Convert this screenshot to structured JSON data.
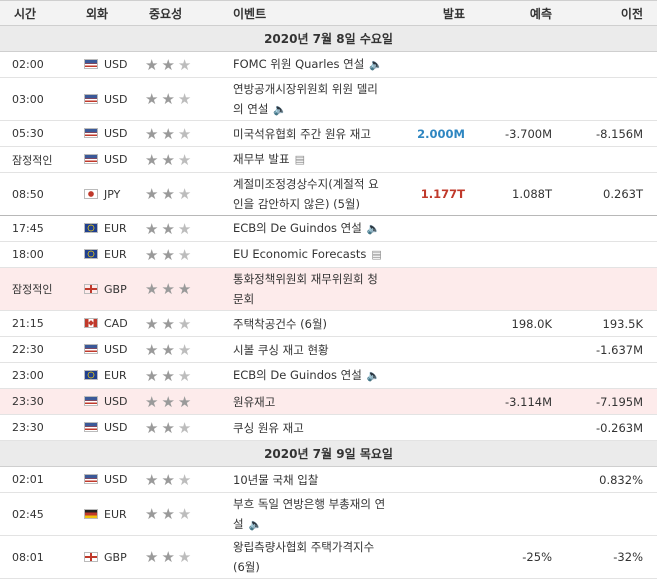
{
  "headers": {
    "time": "시간",
    "currency": "외화",
    "importance": "중요성",
    "event": "이벤트",
    "actual": "발표",
    "forecast": "예측",
    "previous": "이전"
  },
  "sections": [
    {
      "date": "2020년 7월 8일 수요일",
      "rows": [
        {
          "time": "02:00",
          "flag": "us",
          "currency": "USD",
          "stars": 2,
          "event": "FOMC 위원 Quarles 연설",
          "icon": "speaker-icon",
          "actual": "",
          "actual_dir": "",
          "forecast": "",
          "previous": "",
          "lines": 1,
          "hl": false
        },
        {
          "time": "03:00",
          "flag": "us",
          "currency": "USD",
          "stars": 2,
          "event": "연방공개시장위원회 위원 델리의 연설",
          "icon": "speaker-icon",
          "actual": "",
          "actual_dir": "",
          "forecast": "",
          "previous": "",
          "lines": 2,
          "hl": false
        },
        {
          "time": "05:30",
          "flag": "us",
          "currency": "USD",
          "stars": 2,
          "event": "미국석유협회 주간 원유 재고",
          "icon": "",
          "actual": "2.000M",
          "actual_dir": "up",
          "forecast": "-3.700M",
          "previous": "-8.156M",
          "lines": 1,
          "hl": false
        },
        {
          "time": "잠정적인",
          "flag": "us",
          "currency": "USD",
          "stars": 2,
          "event": "재무부 발표",
          "icon": "document-icon",
          "actual": "",
          "actual_dir": "",
          "forecast": "",
          "previous": "",
          "lines": 1,
          "hl": false
        },
        {
          "time": "08:50",
          "flag": "jp",
          "currency": "JPY",
          "stars": 2,
          "event": "계절미조정경상수지(계절적 요인을 감안하지 않은) (5월)",
          "icon": "",
          "actual": "1.177T",
          "actual_dir": "dn",
          "forecast": "1.088T",
          "previous": "0.263T",
          "lines": 2,
          "hl": false,
          "sep": true
        },
        {
          "time": "17:45",
          "flag": "eu",
          "currency": "EUR",
          "stars": 2,
          "event": "ECB의 De Guindos 연설",
          "icon": "speaker-icon",
          "actual": "",
          "actual_dir": "",
          "forecast": "",
          "previous": "",
          "lines": 1,
          "hl": false
        },
        {
          "time": "18:00",
          "flag": "eu",
          "currency": "EUR",
          "stars": 2,
          "event": "EU Economic Forecasts",
          "icon": "document-icon",
          "actual": "",
          "actual_dir": "",
          "forecast": "",
          "previous": "",
          "lines": 1,
          "hl": false
        },
        {
          "time": "잠정적인",
          "flag": "gb",
          "currency": "GBP",
          "stars": 3,
          "event": "통화정책위원회 재무위원회 청문회",
          "icon": "",
          "actual": "",
          "actual_dir": "",
          "forecast": "",
          "previous": "",
          "lines": 2,
          "hl": true
        },
        {
          "time": "21:15",
          "flag": "ca",
          "currency": "CAD",
          "stars": 2,
          "event": "주택착공건수 (6월)",
          "icon": "",
          "actual": "",
          "actual_dir": "",
          "forecast": "198.0K",
          "previous": "193.5K",
          "lines": 1,
          "hl": false
        },
        {
          "time": "22:30",
          "flag": "us",
          "currency": "USD",
          "stars": 2,
          "event": "시볼 쿠싱 재고 현황",
          "icon": "",
          "actual": "",
          "actual_dir": "",
          "forecast": "",
          "previous": "-1.637M",
          "lines": 1,
          "hl": false
        },
        {
          "time": "23:00",
          "flag": "eu",
          "currency": "EUR",
          "stars": 2,
          "event": "ECB의 De Guindos 연설",
          "icon": "speaker-icon",
          "actual": "",
          "actual_dir": "",
          "forecast": "",
          "previous": "",
          "lines": 1,
          "hl": false
        },
        {
          "time": "23:30",
          "flag": "us",
          "currency": "USD",
          "stars": 3,
          "event": "원유재고",
          "icon": "",
          "actual": "",
          "actual_dir": "",
          "forecast": "-3.114M",
          "previous": "-7.195M",
          "lines": 1,
          "hl": true
        },
        {
          "time": "23:30",
          "flag": "us",
          "currency": "USD",
          "stars": 2,
          "event": "쿠싱 원유 재고",
          "icon": "",
          "actual": "",
          "actual_dir": "",
          "forecast": "",
          "previous": "-0.263M",
          "lines": 1,
          "hl": false
        }
      ]
    },
    {
      "date": "2020년 7월 9일 목요일",
      "rows": [
        {
          "time": "02:01",
          "flag": "us",
          "currency": "USD",
          "stars": 2,
          "event": "10년물 국채 입찰",
          "icon": "",
          "actual": "",
          "actual_dir": "",
          "forecast": "",
          "previous": "0.832%",
          "lines": 1,
          "hl": false
        },
        {
          "time": "02:45",
          "flag": "de",
          "currency": "EUR",
          "stars": 2,
          "event": "부흐 독일 연방은행 부총재의 연설",
          "icon": "speaker-icon",
          "actual": "",
          "actual_dir": "",
          "forecast": "",
          "previous": "",
          "lines": 2,
          "hl": false
        },
        {
          "time": "08:01",
          "flag": "gb",
          "currency": "GBP",
          "stars": 2,
          "event": "왕립측량사협회 주택가격지수 (6월)",
          "icon": "",
          "actual": "",
          "actual_dir": "",
          "forecast": "-25%",
          "previous": "-32%",
          "lines": 2,
          "hl": false
        }
      ]
    }
  ]
}
